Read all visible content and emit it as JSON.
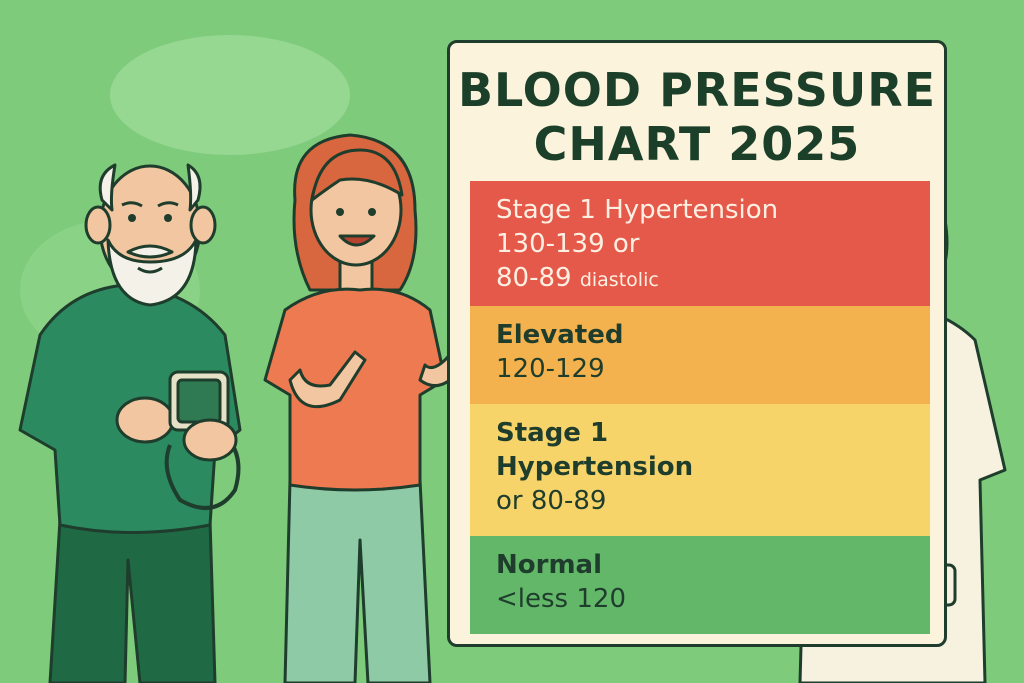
{
  "chart": {
    "title_line1": "BLOOD PRESSURE",
    "title_line2": "CHART 2025",
    "bands": [
      {
        "line1": "Stage 1 Hypertension",
        "line2": "130-139 or",
        "line3_a": "80-89",
        "line3_b": "diastolic",
        "color": "#e5594a"
      },
      {
        "line1": "Elevated",
        "line2": "120-129",
        "color": "#f3b24e"
      },
      {
        "line1": "Stage 1",
        "line2": "Hypertension",
        "line3": "or 80-89",
        "color": "#f7d46a"
      },
      {
        "line1": "Normal",
        "line2": "<less 120",
        "color": "#63b769"
      }
    ]
  },
  "colors": {
    "background": "#7fcb7c",
    "board": "#fbf3dc",
    "outline": "#1f3d2c"
  }
}
